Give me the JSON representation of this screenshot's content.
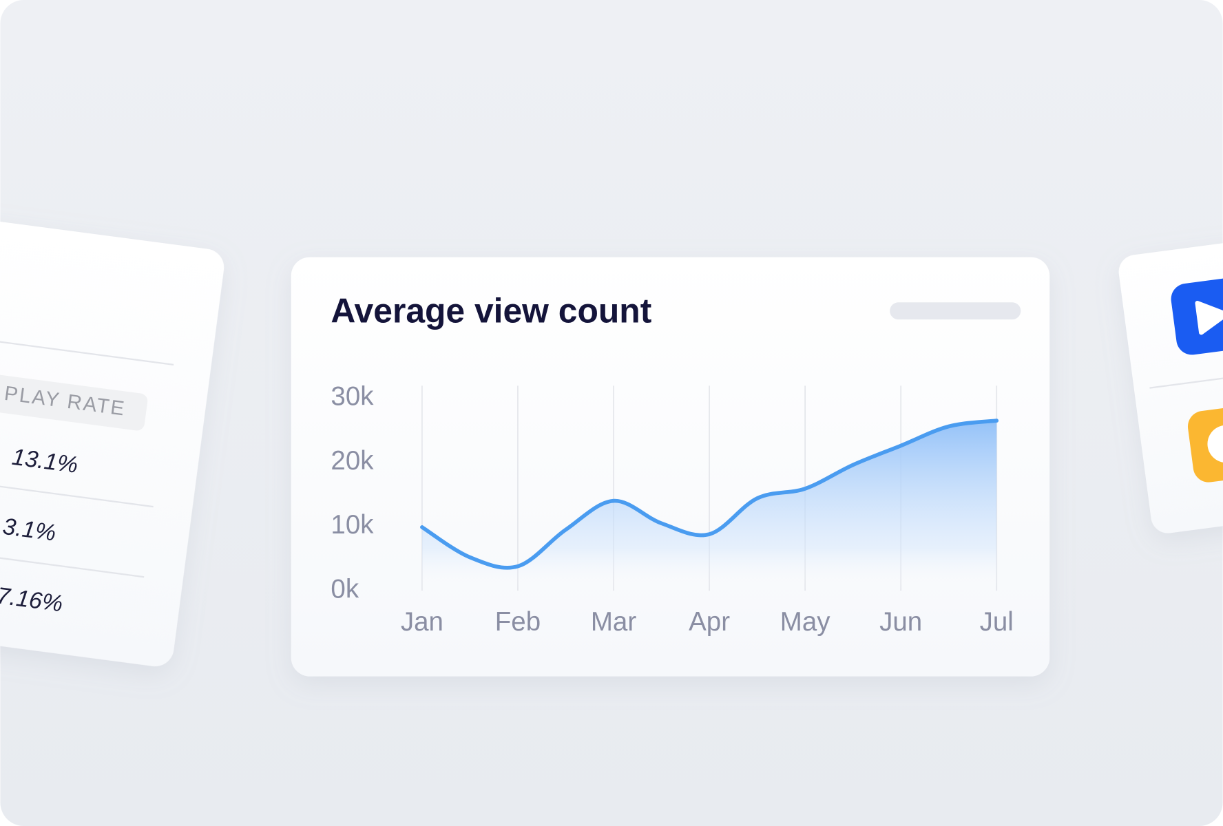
{
  "chart_data": {
    "type": "line",
    "title": "Average view count",
    "categories": [
      "Jan",
      null,
      "Feb",
      null,
      "Mar",
      null,
      "Apr",
      null,
      "May",
      null,
      "Jun",
      null,
      "Jul"
    ],
    "values": [
      9900,
      5200,
      3800,
      9500,
      14000,
      10500,
      8800,
      14400,
      15900,
      19600,
      22600,
      25600,
      26500
    ],
    "color": "#4a9cf0",
    "ylim": [
      0,
      30000
    ],
    "yticks": [
      {
        "value": 0,
        "label": "0k"
      },
      {
        "value": 10000,
        "label": "10k"
      },
      {
        "value": 20000,
        "label": "20k"
      },
      {
        "value": 30000,
        "label": "30k"
      }
    ],
    "grid": true
  },
  "left_card": {
    "header": "PLAY RATE",
    "rows": [
      "13.1%",
      "3.1%",
      "7.16%"
    ]
  }
}
